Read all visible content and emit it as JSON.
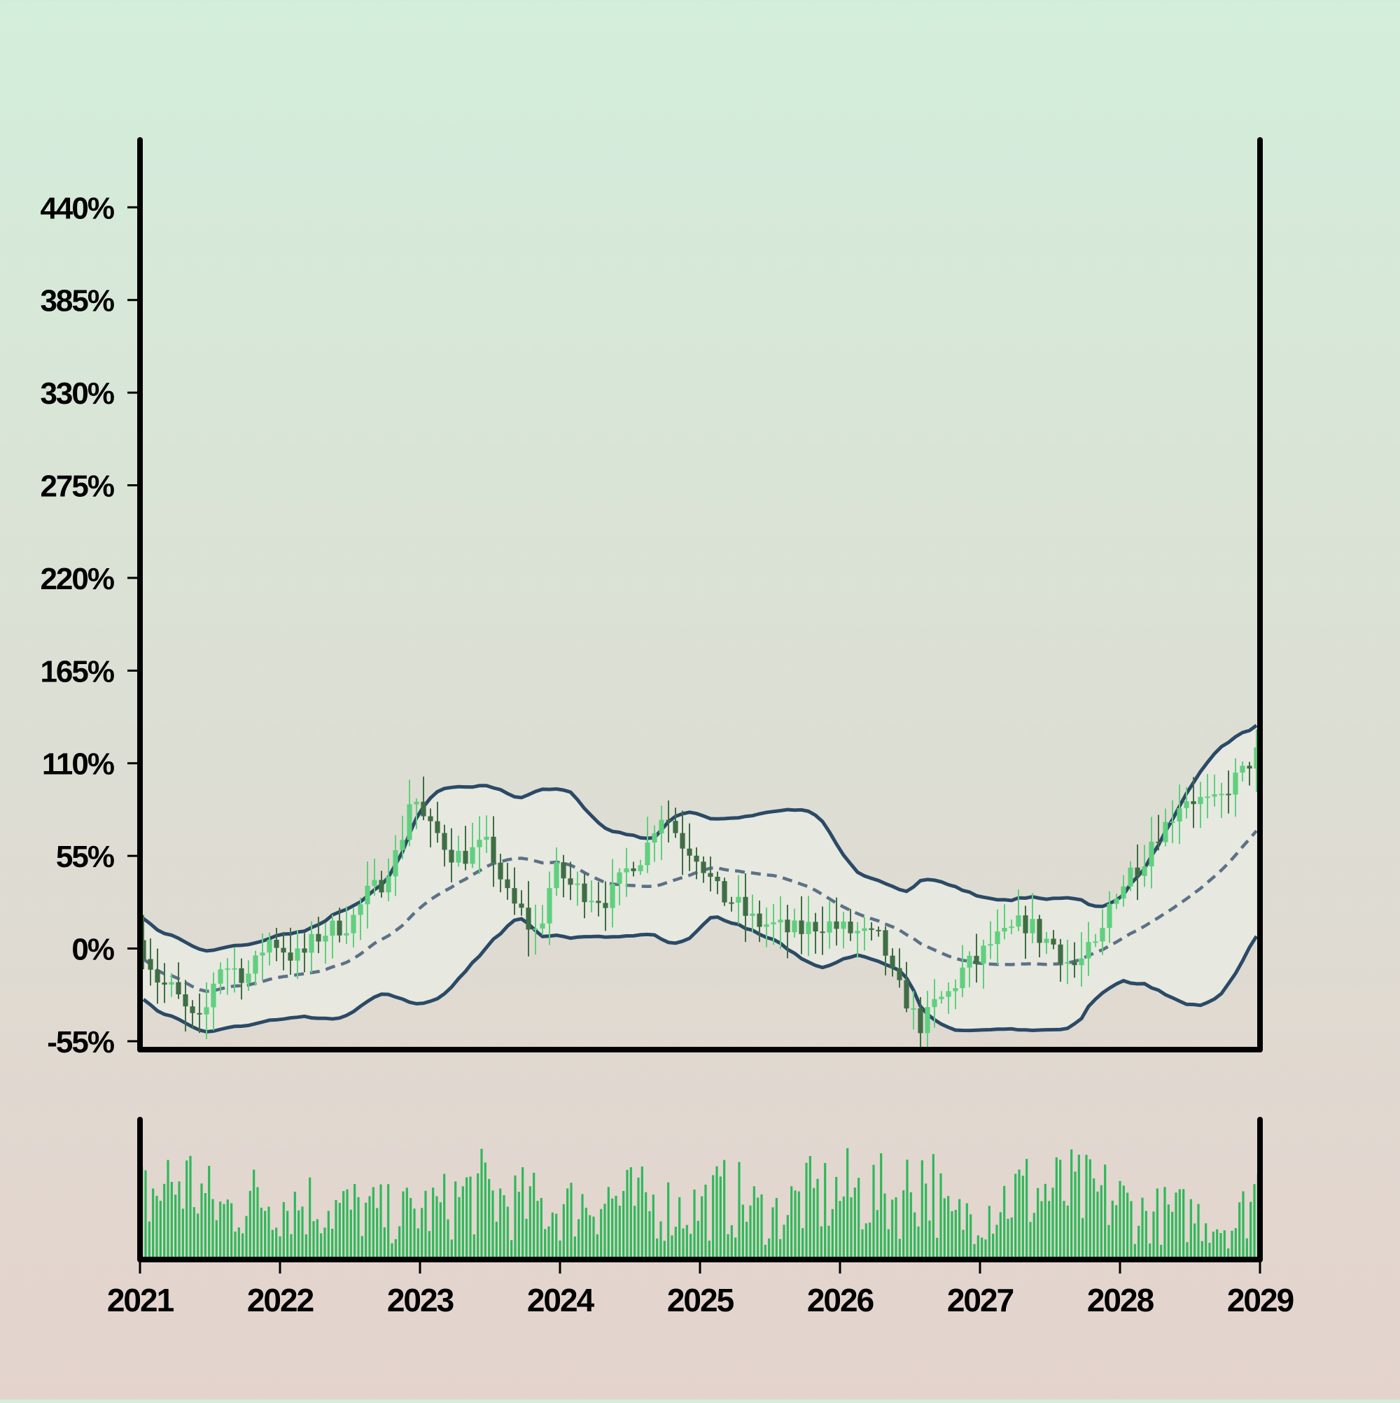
{
  "chart_data": {
    "type": "candlestick",
    "ylim": [
      -60,
      480
    ],
    "yticks": [
      -55,
      0,
      55,
      110,
      165,
      220,
      275,
      330,
      385,
      440
    ],
    "ytick_labels": [
      "-55%",
      "0%",
      "55%",
      "110%",
      "165%",
      "220%",
      "275%",
      "330%",
      "385%",
      "440%"
    ],
    "xlim": [
      2021,
      2029
    ],
    "xticks": [
      2021,
      2022,
      2023,
      2024,
      2025,
      2026,
      2027,
      2028,
      2029
    ],
    "xtick_labels": [
      "2021",
      "2022",
      "2023",
      "2024",
      "2025",
      "2026",
      "2027",
      "2028",
      "2029"
    ],
    "grid": false,
    "colors": {
      "up": "#5fd07e",
      "down": "#3f6e45",
      "band_line": "#2b4a66",
      "mid_line": "#5b7186",
      "band_fill": "#e9eae2",
      "volume": "#2fb85a",
      "axis": "#000000"
    },
    "price_anchors": [
      [
        2021.0,
        5
      ],
      [
        2021.2,
        -22
      ],
      [
        2021.45,
        -45
      ],
      [
        2021.6,
        -10
      ],
      [
        2021.8,
        -15
      ],
      [
        2021.95,
        5
      ],
      [
        2022.15,
        -5
      ],
      [
        2022.35,
        10
      ],
      [
        2022.5,
        15
      ],
      [
        2022.7,
        35
      ],
      [
        2022.85,
        55
      ],
      [
        2022.97,
        90
      ],
      [
        2023.1,
        70
      ],
      [
        2023.3,
        55
      ],
      [
        2023.5,
        60
      ],
      [
        2023.7,
        25
      ],
      [
        2023.85,
        10
      ],
      [
        2024.0,
        45
      ],
      [
        2024.15,
        35
      ],
      [
        2024.35,
        30
      ],
      [
        2024.6,
        55
      ],
      [
        2024.75,
        80
      ],
      [
        2024.95,
        60
      ],
      [
        2025.2,
        30
      ],
      [
        2025.45,
        15
      ],
      [
        2025.7,
        10
      ],
      [
        2025.9,
        15
      ],
      [
        2026.1,
        10
      ],
      [
        2026.3,
        5
      ],
      [
        2026.45,
        -25
      ],
      [
        2026.6,
        -45
      ],
      [
        2026.75,
        -30
      ],
      [
        2026.95,
        -10
      ],
      [
        2027.15,
        5
      ],
      [
        2027.35,
        15
      ],
      [
        2027.5,
        5
      ],
      [
        2027.7,
        -10
      ],
      [
        2027.85,
        0
      ],
      [
        2028.0,
        35
      ],
      [
        2028.15,
        50
      ],
      [
        2028.3,
        70
      ],
      [
        2028.5,
        90
      ],
      [
        2028.7,
        85
      ],
      [
        2028.85,
        100
      ],
      [
        2029.0,
        115
      ]
    ],
    "volume_anchors": [
      [
        2021.0,
        0.55
      ],
      [
        2021.3,
        0.7
      ],
      [
        2021.6,
        0.45
      ],
      [
        2021.9,
        0.55
      ],
      [
        2022.2,
        0.5
      ],
      [
        2022.5,
        0.45
      ],
      [
        2022.8,
        0.4
      ],
      [
        2023.1,
        0.45
      ],
      [
        2023.4,
        0.6
      ],
      [
        2023.7,
        0.5
      ],
      [
        2024.0,
        0.45
      ],
      [
        2024.3,
        0.55
      ],
      [
        2024.6,
        0.5
      ],
      [
        2024.9,
        0.45
      ],
      [
        2025.2,
        0.55
      ],
      [
        2025.5,
        0.4
      ],
      [
        2025.8,
        0.55
      ],
      [
        2026.1,
        0.6
      ],
      [
        2026.4,
        0.55
      ],
      [
        2026.6,
        0.75
      ],
      [
        2026.8,
        0.35
      ],
      [
        2027.0,
        0.45
      ],
      [
        2027.3,
        0.6
      ],
      [
        2027.6,
        0.6
      ],
      [
        2027.9,
        0.55
      ],
      [
        2028.2,
        0.4
      ],
      [
        2028.5,
        0.4
      ],
      [
        2028.8,
        0.3
      ],
      [
        2029.0,
        0.65
      ]
    ],
    "bands": {
      "window": 24,
      "std_mult": 2
    }
  }
}
